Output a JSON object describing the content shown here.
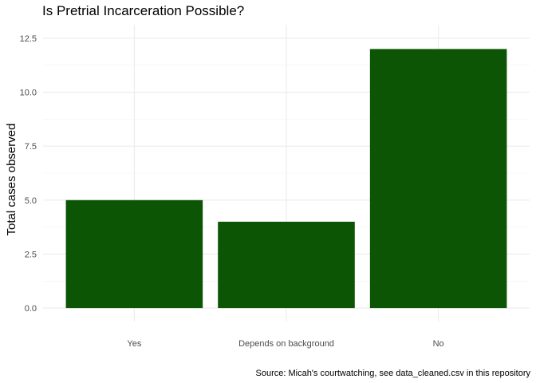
{
  "chart_data": {
    "type": "bar",
    "title": "Is Pretrial Incarceration Possible?",
    "xlabel": "",
    "ylabel": "Total cases observed",
    "categories": [
      "Yes",
      "Depends on background",
      "No"
    ],
    "values": [
      5,
      4,
      12
    ],
    "ylim": [
      0,
      12.5
    ],
    "yticks": [
      0,
      2.5,
      5,
      7.5,
      10,
      12.5
    ],
    "ytick_labels": [
      "0.0",
      "2.5",
      "5.0",
      "7.5",
      "10.0",
      "12.5"
    ],
    "grid": true,
    "legend": "none",
    "caption": "Source: Micah's courtwatching, see data_cleaned.csv in this repository",
    "bar_color": "#0b5504"
  }
}
